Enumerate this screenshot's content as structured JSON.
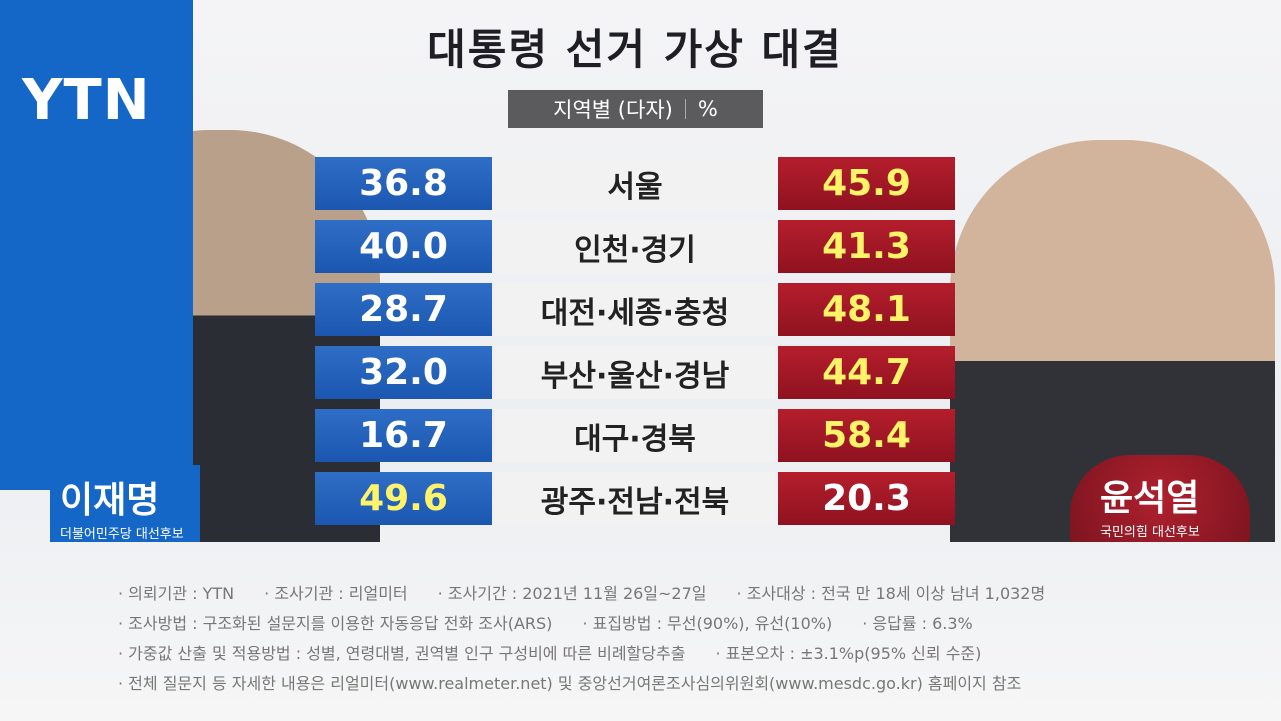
{
  "logo": "YTN",
  "title": "대통령 선거 가상 대결",
  "subtitle": {
    "label": "지역별 (다자)",
    "unit": "%"
  },
  "candidates": [
    {
      "name": "이재명",
      "party": "더불어민주당 대선후보"
    },
    {
      "name": "윤석열",
      "party": "국민의힘 대선후보"
    }
  ],
  "table": {
    "rows": [
      [
        "36.8",
        "서울",
        "45.9"
      ],
      [
        "40.0",
        "인천·경기",
        "41.3"
      ],
      [
        "28.7",
        "대전·세종·충청",
        "48.1"
      ],
      [
        "32.0",
        "부산·울산·경남",
        "44.7"
      ],
      [
        "16.7",
        "대구·경북",
        "58.4"
      ],
      [
        "49.6",
        "광주·전남·전북",
        "20.3"
      ]
    ]
  },
  "notes": [
    [
      "의뢰기관 : YTN",
      "조사기관 : 리얼미터",
      "조사기간 : 2021년 11월 26일~27일",
      "조사대상 : 전국 만 18세 이상 남녀 1,032명"
    ],
    [
      "조사방법 : 구조화된 설문지를 이용한 자동응답 전화 조사(ARS)",
      "표집방법 : 무선(90%), 유선(10%)",
      "응답률 : 6.3%"
    ],
    [
      "가중값 산출 및 적용방법 : 성별,  연령대별, 권역별 인구 구성비에 따른 비례할당추출",
      "표본오차 : ±3.1%p(95% 신뢰 수준)"
    ],
    [
      "전체 질문지 등 자세한 내용은 리얼미터(www.realmeter.net) 및 중앙선거여론조사심의위원회(www.mesdc.go.kr) 홈페이지 참조"
    ]
  ]
}
